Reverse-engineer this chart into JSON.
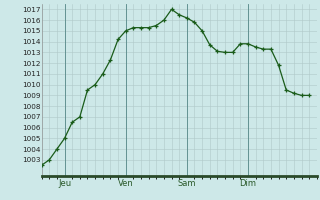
{
  "x": [
    0,
    3,
    6,
    9,
    12,
    15,
    18,
    21,
    24,
    27,
    30,
    33,
    36,
    39,
    42,
    45,
    48,
    51,
    54,
    57,
    60,
    63,
    66,
    69,
    72,
    75,
    78,
    81,
    84,
    87,
    90,
    93,
    96,
    99,
    102,
    105
  ],
  "y": [
    1002.5,
    1003.0,
    1004.0,
    1005.0,
    1006.5,
    1007.0,
    1009.5,
    1010.0,
    1011.0,
    1012.3,
    1014.2,
    1015.0,
    1015.3,
    1015.3,
    1015.3,
    1015.5,
    1016.0,
    1017.0,
    1016.5,
    1016.2,
    1015.8,
    1015.0,
    1013.7,
    1013.1,
    1013.0,
    1013.0,
    1013.8,
    1013.8,
    1013.5,
    1013.3,
    1013.3,
    1011.8,
    1009.5,
    1009.2,
    1009.0,
    1009.0
  ],
  "xtick_positions": [
    9,
    33,
    57,
    81
  ],
  "xtick_labels": [
    "Jeu",
    "Ven",
    "Sam",
    "Dim"
  ],
  "day_lines": [
    9,
    33,
    57,
    81
  ],
  "ylim": [
    1001.5,
    1017.5
  ],
  "ytick_min": 1003,
  "ytick_max": 1017,
  "ytick_step": 1,
  "xlim_min": 0,
  "xlim_max": 108,
  "bg_color": "#cde8e8",
  "line_color": "#1a5c1a",
  "marker_color": "#1a5c1a",
  "grid_color": "#b0c8c8",
  "grid_major_color": "#9ab8b8",
  "bottom_bar_color": "#2a4a2a"
}
